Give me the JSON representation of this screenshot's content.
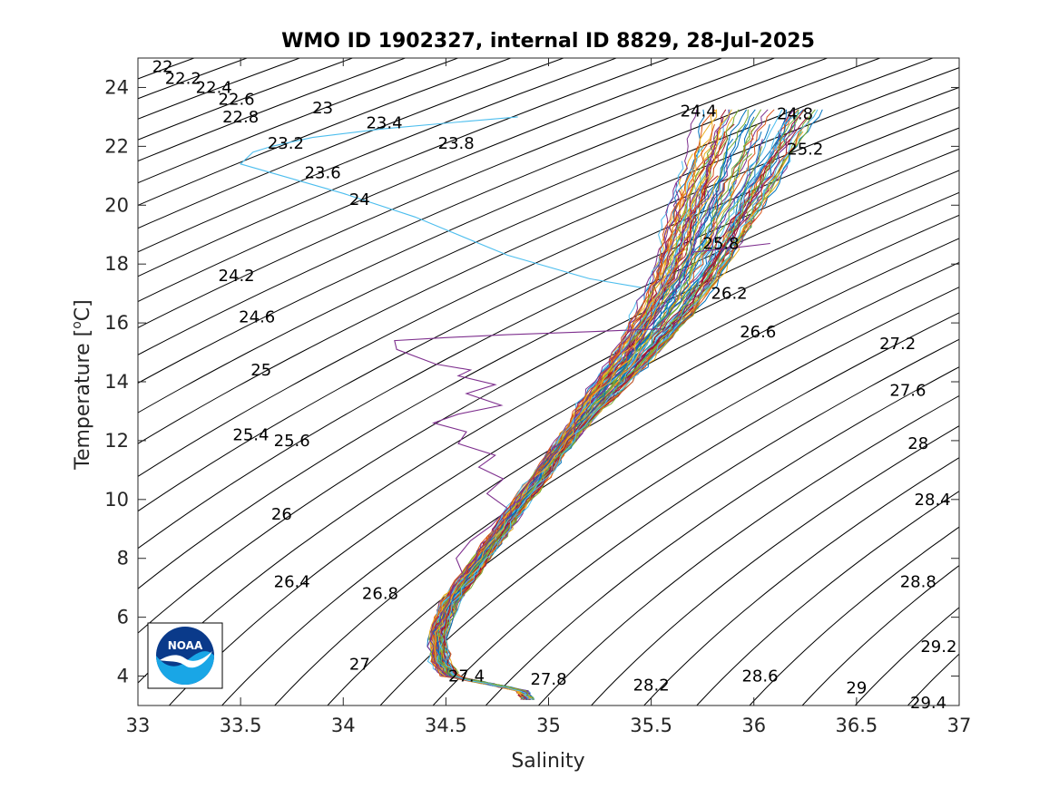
{
  "chart_data": {
    "type": "scatter",
    "title": "WMO ID 1902327, internal ID 8829, 28-Jul-2025",
    "xlabel": "Salinity",
    "ylabel_main": "Temperature [",
    "ylabel_sup": "o",
    "ylabel_tail": "C]",
    "xlim": [
      33,
      37
    ],
    "ylim": [
      3,
      25
    ],
    "x_ticks": [
      33,
      33.5,
      34,
      34.5,
      35,
      35.5,
      36,
      36.5,
      37
    ],
    "x_tick_labels": [
      "33",
      "33.5",
      "34",
      "34.5",
      "35",
      "35.5",
      "36",
      "36.5",
      "37"
    ],
    "y_ticks": [
      4,
      6,
      8,
      10,
      12,
      14,
      16,
      18,
      20,
      22,
      24
    ],
    "y_tick_labels": [
      "4",
      "6",
      "8",
      "10",
      "12",
      "14",
      "16",
      "18",
      "20",
      "22",
      "24"
    ],
    "grid": false,
    "density_isolines": {
      "color": "#000000",
      "start": 22.0,
      "step": 0.2,
      "count": 38
    },
    "isoline_labels": [
      {
        "text": "22",
        "s": 33.12,
        "t": 24.7
      },
      {
        "text": "22.2",
        "s": 33.22,
        "t": 24.3
      },
      {
        "text": "22.4",
        "s": 33.37,
        "t": 24.0
      },
      {
        "text": "22.6",
        "s": 33.48,
        "t": 23.6
      },
      {
        "text": "22.8",
        "s": 33.5,
        "t": 23.0
      },
      {
        "text": "23",
        "s": 33.9,
        "t": 23.3
      },
      {
        "text": "23.2",
        "s": 33.72,
        "t": 22.1
      },
      {
        "text": "23.4",
        "s": 34.2,
        "t": 22.8
      },
      {
        "text": "23.6",
        "s": 33.9,
        "t": 21.1
      },
      {
        "text": "23.8",
        "s": 34.55,
        "t": 22.1
      },
      {
        "text": "24",
        "s": 34.08,
        "t": 20.2
      },
      {
        "text": "24.2",
        "s": 33.48,
        "t": 17.6
      },
      {
        "text": "24.4",
        "s": 35.73,
        "t": 23.2
      },
      {
        "text": "24.6",
        "s": 33.58,
        "t": 16.2
      },
      {
        "text": "24.8",
        "s": 36.2,
        "t": 23.1
      },
      {
        "text": "25",
        "s": 33.6,
        "t": 14.4
      },
      {
        "text": "25.2",
        "s": 36.25,
        "t": 21.9
      },
      {
        "text": "25.4",
        "s": 33.55,
        "t": 12.2
      },
      {
        "text": "25.6",
        "s": 33.75,
        "t": 12.0
      },
      {
        "text": "25.8",
        "s": 35.84,
        "t": 18.7
      },
      {
        "text": "26",
        "s": 33.7,
        "t": 9.5
      },
      {
        "text": "26.2",
        "s": 35.88,
        "t": 17.0
      },
      {
        "text": "26.4",
        "s": 33.75,
        "t": 7.2
      },
      {
        "text": "26.6",
        "s": 36.02,
        "t": 15.7
      },
      {
        "text": "26.8",
        "s": 34.18,
        "t": 6.8
      },
      {
        "text": "27",
        "s": 34.08,
        "t": 4.4
      },
      {
        "text": "27.2",
        "s": 36.7,
        "t": 15.3
      },
      {
        "text": "27.4",
        "s": 34.6,
        "t": 4.0
      },
      {
        "text": "27.6",
        "s": 36.75,
        "t": 13.7
      },
      {
        "text": "27.8",
        "s": 35.0,
        "t": 3.9
      },
      {
        "text": "28",
        "s": 36.8,
        "t": 11.9
      },
      {
        "text": "28.2",
        "s": 35.5,
        "t": 3.7
      },
      {
        "text": "28.4",
        "s": 36.87,
        "t": 10.0
      },
      {
        "text": "28.6",
        "s": 36.03,
        "t": 4.0
      },
      {
        "text": "28.8",
        "s": 36.8,
        "t": 7.2
      },
      {
        "text": "29",
        "s": 36.5,
        "t": 3.6
      },
      {
        "text": "29.2",
        "s": 36.9,
        "t": 5.0
      },
      {
        "text": "29.4",
        "s": 36.85,
        "t": 3.1
      }
    ],
    "profile_colors": [
      "#0072BD",
      "#D95319",
      "#EDB120",
      "#7E2F8E",
      "#77AC30",
      "#4DBEEE",
      "#A2142F"
    ],
    "profile_count": 90,
    "ts_curve_center": [
      {
        "t": 3.2,
        "s": 34.9
      },
      {
        "t": 3.5,
        "s": 34.87
      },
      {
        "t": 3.75,
        "s": 34.7
      },
      {
        "t": 4.0,
        "s": 34.52
      },
      {
        "t": 4.5,
        "s": 34.47
      },
      {
        "t": 5.5,
        "s": 34.46
      },
      {
        "t": 6.5,
        "s": 34.52
      },
      {
        "t": 7.5,
        "s": 34.62
      },
      {
        "t": 8.5,
        "s": 34.72
      },
      {
        "t": 9.5,
        "s": 34.82
      },
      {
        "t": 10.5,
        "s": 34.93
      },
      {
        "t": 11.5,
        "s": 35.03
      },
      {
        "t": 12.5,
        "s": 35.14
      },
      {
        "t": 13.5,
        "s": 35.25
      },
      {
        "t": 14.5,
        "s": 35.37
      },
      {
        "t": 15.5,
        "s": 35.48
      },
      {
        "t": 16.5,
        "s": 35.58
      },
      {
        "t": 17.5,
        "s": 35.66
      },
      {
        "t": 18.5,
        "s": 35.73
      },
      {
        "t": 19.5,
        "s": 35.79
      },
      {
        "t": 20.5,
        "s": 35.85
      },
      {
        "t": 21.5,
        "s": 35.92
      },
      {
        "t": 22.5,
        "s": 35.98
      },
      {
        "t": 23.5,
        "s": 36.05
      }
    ],
    "outlier_profiles": [
      {
        "color": "#4DBEEE",
        "points": [
          {
            "s": 35.45,
            "t": 17.2
          },
          {
            "s": 35.2,
            "t": 17.5
          },
          {
            "s": 34.8,
            "t": 18.3
          },
          {
            "s": 34.35,
            "t": 19.6
          },
          {
            "s": 34.0,
            "t": 20.4
          },
          {
            "s": 33.7,
            "t": 21.0
          },
          {
            "s": 33.5,
            "t": 21.4
          },
          {
            "s": 33.56,
            "t": 21.8
          },
          {
            "s": 33.65,
            "t": 22.0
          },
          {
            "s": 33.85,
            "t": 22.3
          },
          {
            "s": 34.2,
            "t": 22.6
          },
          {
            "s": 34.6,
            "t": 22.85
          },
          {
            "s": 34.85,
            "t": 23.0
          }
        ]
      },
      {
        "color": "#7E2F8E",
        "points": [
          {
            "s": 35.55,
            "t": 15.8
          },
          {
            "s": 35.2,
            "t": 15.7
          },
          {
            "s": 34.8,
            "t": 15.6
          },
          {
            "s": 34.5,
            "t": 15.5
          },
          {
            "s": 34.25,
            "t": 15.4
          },
          {
            "s": 34.26,
            "t": 15.1
          },
          {
            "s": 34.45,
            "t": 14.6
          },
          {
            "s": 34.62,
            "t": 14.4
          },
          {
            "s": 34.56,
            "t": 14.2
          },
          {
            "s": 34.74,
            "t": 13.9
          },
          {
            "s": 34.6,
            "t": 13.6
          },
          {
            "s": 34.77,
            "t": 13.2
          },
          {
            "s": 34.56,
            "t": 12.9
          },
          {
            "s": 34.44,
            "t": 12.6
          },
          {
            "s": 34.6,
            "t": 12.3
          },
          {
            "s": 34.56,
            "t": 11.9
          },
          {
            "s": 34.74,
            "t": 11.5
          },
          {
            "s": 34.66,
            "t": 11.1
          },
          {
            "s": 34.78,
            "t": 10.7
          },
          {
            "s": 34.7,
            "t": 10.2
          },
          {
            "s": 34.8,
            "t": 9.7
          },
          {
            "s": 34.72,
            "t": 9.1
          },
          {
            "s": 34.62,
            "t": 8.6
          },
          {
            "s": 34.55,
            "t": 8.0
          },
          {
            "s": 34.58,
            "t": 7.5
          }
        ]
      },
      {
        "color": "#7E2F8E",
        "points": [
          {
            "s": 35.7,
            "t": 18.4
          },
          {
            "s": 35.9,
            "t": 18.55
          },
          {
            "s": 36.08,
            "t": 18.7
          }
        ]
      }
    ],
    "logo": {
      "text": "NOAA"
    }
  }
}
